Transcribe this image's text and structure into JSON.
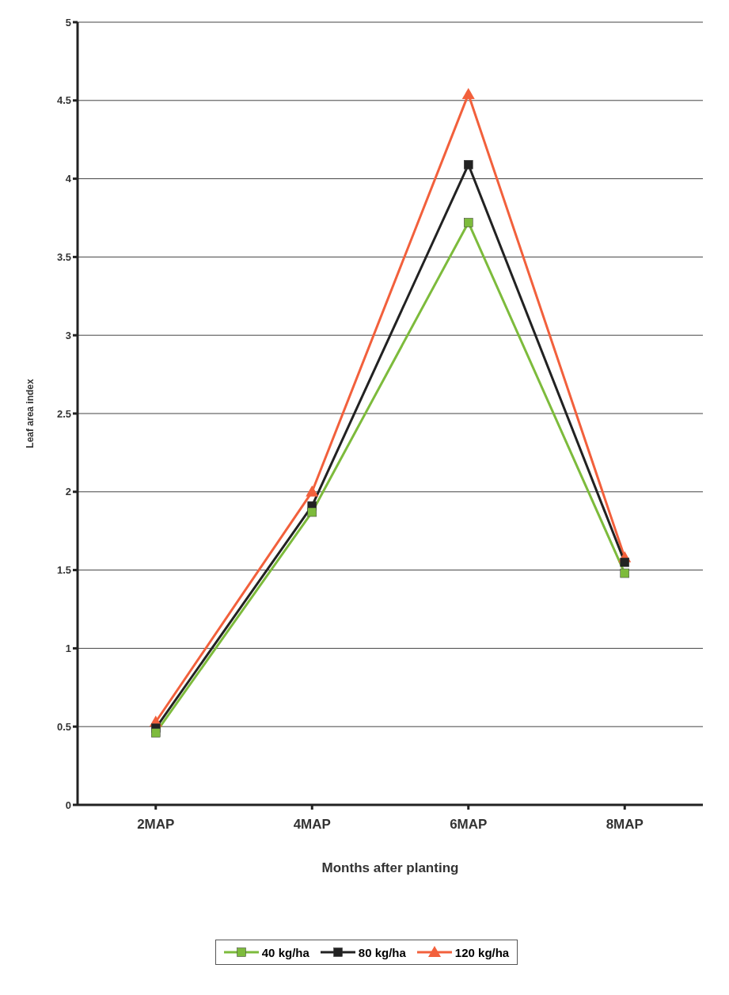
{
  "chart_data": {
    "type": "line",
    "xlabel": "Months after planting",
    "ylabel": "Leaf area index",
    "categories": [
      "2MAP",
      "4MAP",
      "6MAP",
      "8MAP"
    ],
    "series": [
      {
        "name": "40 kg/ha",
        "color": "#7dbb3c",
        "marker": "square",
        "values": [
          0.46,
          1.87,
          3.72,
          1.48
        ]
      },
      {
        "name": "80 kg/ha",
        "color": "#222222",
        "marker": "square",
        "values": [
          0.49,
          1.91,
          4.09,
          1.55
        ]
      },
      {
        "name": "120 kg/ha",
        "color": "#f2603c",
        "marker": "triangle",
        "values": [
          0.53,
          2.0,
          4.54,
          1.58
        ]
      }
    ],
    "ylim": [
      0,
      5
    ],
    "yticks": [
      0,
      0.5,
      1,
      1.5,
      2,
      2.5,
      3,
      3.5,
      4,
      4.5,
      5
    ],
    "grid": "y",
    "legend": "bottom",
    "line_style": "solid"
  }
}
